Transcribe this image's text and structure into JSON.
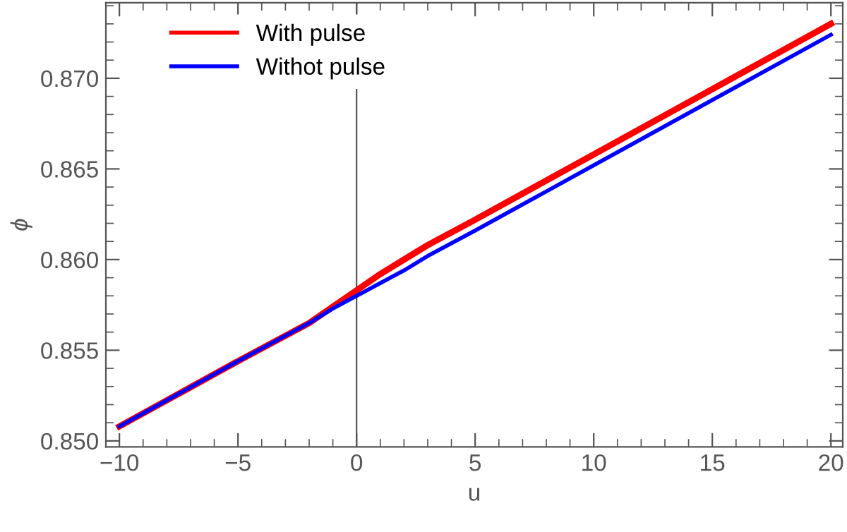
{
  "chart_data": {
    "type": "line",
    "xlabel": "u",
    "ylabel": "ϕ",
    "series": [
      {
        "name": "With pulse",
        "color": "#ff0000",
        "x": [
          -10,
          -5,
          -2,
          -1,
          0,
          1,
          2,
          3,
          5,
          10,
          15,
          20
        ],
        "values": [
          0.8508,
          0.8544,
          0.8565,
          0.8574,
          0.8583,
          0.8592,
          0.86,
          0.8608,
          0.8622,
          0.8658,
          0.8694,
          0.873
        ]
      },
      {
        "name": "Withot pulse",
        "color": "#0000ff",
        "x": [
          -10,
          -5,
          -2,
          -1,
          0,
          1,
          2,
          3,
          5,
          10,
          15,
          20
        ],
        "values": [
          0.8508,
          0.8544,
          0.8565,
          0.8573,
          0.858,
          0.8587,
          0.8594,
          0.8602,
          0.8616,
          0.8652,
          0.8688,
          0.8724
        ]
      }
    ],
    "xlim": [
      -10.57,
      20.5
    ],
    "ylim": [
      0.84967,
      0.87417
    ],
    "xticks": [
      {
        "value": -10,
        "label": "−10"
      },
      {
        "value": -5,
        "label": "−5"
      },
      0,
      5,
      10,
      15,
      20
    ],
    "yticks": [
      {
        "value": 0.85,
        "label": "0.850"
      },
      0.855,
      {
        "value": 0.86,
        "label": "0.860"
      },
      0.865,
      {
        "value": 0.87,
        "label": "0.870"
      }
    ],
    "ref_lines": [
      {
        "axis": "x",
        "value": 0,
        "color": "#555555"
      }
    ],
    "grid": false,
    "legend": "top left",
    "marker": "none",
    "line_style": "solid"
  }
}
